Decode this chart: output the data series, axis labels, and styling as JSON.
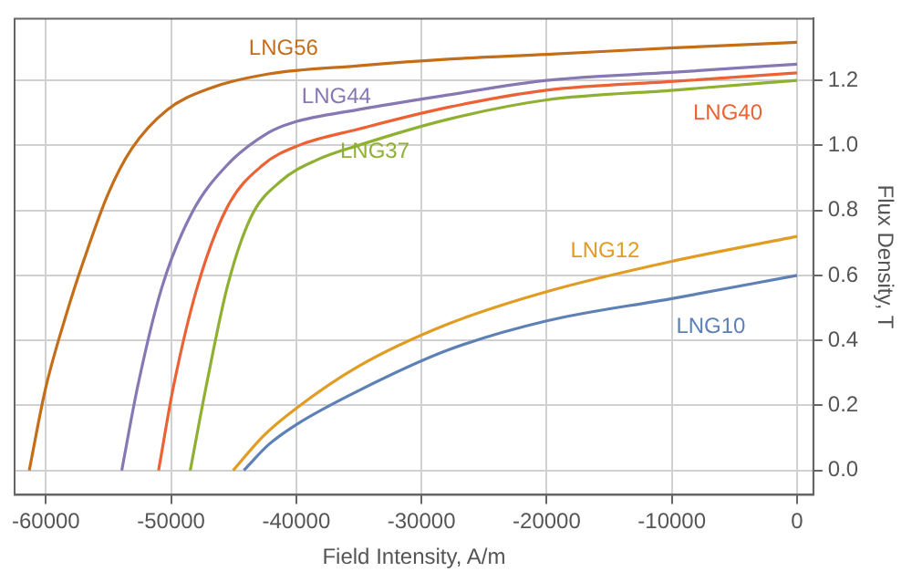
{
  "chart_data": {
    "type": "line",
    "xlabel": "Field Intensity, A/m",
    "ylabel": "Flux Density, T",
    "xlim": [
      -62500,
      1300
    ],
    "ylim": [
      -0.075,
      1.39
    ],
    "xticks": [
      -60000,
      -50000,
      -40000,
      -30000,
      -20000,
      -10000,
      0
    ],
    "yticks": [
      {
        "value": 0,
        "label": "0.0"
      },
      {
        "value": 0.2,
        "label": "0.2"
      },
      {
        "value": 0.4,
        "label": "0.4"
      },
      {
        "value": 0.6,
        "label": "0.6"
      },
      {
        "value": 0.8,
        "label": "0.8"
      },
      {
        "value": 1,
        "label": "1.0"
      },
      {
        "value": 1.2,
        "label": "1.2"
      }
    ],
    "grid": true,
    "legend": false,
    "marker": "none",
    "line_style": "solid",
    "series": [
      {
        "name": "LNG56",
        "color": "#c56e1a",
        "x": [
          -61330,
          -60040,
          -58370,
          -56940,
          -55040,
          -53140,
          -50290,
          -46940,
          -42190,
          -35040,
          -27900,
          -20000,
          -9800,
          0
        ],
        "values": [
          0,
          0.25,
          0.48,
          0.65,
          0.85,
          0.99,
          1.11,
          1.175,
          1.22,
          1.245,
          1.265,
          1.28,
          1.3,
          1.317
        ]
      },
      {
        "name": "LNG44",
        "color": "#8778b3",
        "x": [
          -53940,
          -52660,
          -50760,
          -48370,
          -45510,
          -42190,
          -40290,
          -35040,
          -27900,
          -20000,
          -9800,
          0
        ],
        "values": [
          0,
          0.26,
          0.56,
          0.79,
          0.94,
          1.04,
          1.07,
          1.11,
          1.155,
          1.2,
          1.225,
          1.25
        ]
      },
      {
        "name": "LNG40",
        "color": "#eb6235",
        "x": [
          -51000,
          -49800,
          -47900,
          -45510,
          -42660,
          -39800,
          -35040,
          -27900,
          -20000,
          -9800,
          0
        ],
        "values": [
          0,
          0.26,
          0.565,
          0.81,
          0.94,
          1.0,
          1.05,
          1.117,
          1.17,
          1.197,
          1.223
        ]
      },
      {
        "name": "LNG37",
        "color": "#8fb032",
        "x": [
          -48470,
          -47190,
          -45510,
          -43610,
          -41230,
          -38370,
          -35040,
          -27900,
          -20000,
          -9800,
          0
        ],
        "values": [
          0,
          0.26,
          0.565,
          0.78,
          0.89,
          0.955,
          1.0,
          1.08,
          1.14,
          1.17,
          1.2
        ]
      },
      {
        "name": "LNG12",
        "color": "#e19c24",
        "x": [
          -45040,
          -42660,
          -40040,
          -35040,
          -27900,
          -20000,
          -9800,
          0
        ],
        "values": [
          0,
          0.105,
          0.19,
          0.32,
          0.45,
          0.55,
          0.645,
          0.72
        ]
      },
      {
        "name": "LNG10",
        "color": "#5e81b5",
        "x": [
          -44190,
          -42190,
          -40040,
          -35040,
          -27900,
          -20000,
          -9800,
          0
        ],
        "values": [
          0,
          0.08,
          0.14,
          0.245,
          0.37,
          0.46,
          0.53,
          0.6
        ]
      }
    ]
  }
}
